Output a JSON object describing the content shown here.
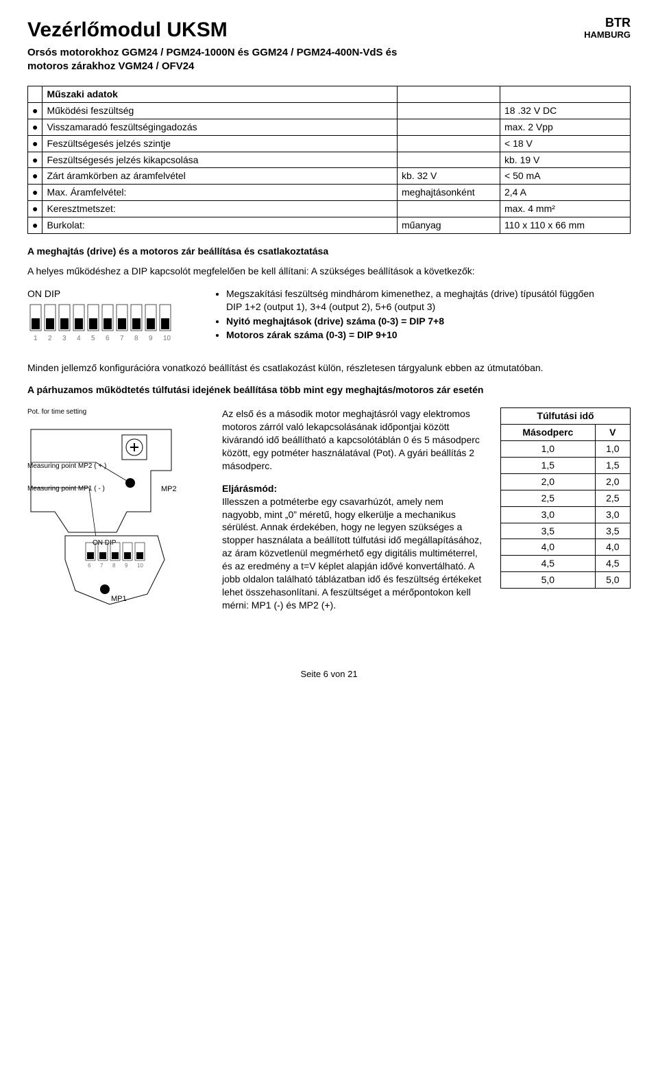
{
  "header": {
    "title": "Vezérlőmodul UKSM",
    "subtitle1": "Orsós motorokhoz GGM24 / PGM24-1000N és GGM24 / PGM24-400N-VdS és",
    "subtitle2": "motoros zárakhoz VGM24 / OFV24",
    "brand_top": "BTR",
    "brand_bottom": "HAMBURG"
  },
  "spec": {
    "rows": [
      {
        "label": "Műszaki adatok",
        "c2": "",
        "c3": ""
      },
      {
        "label": "Működési feszültség",
        "c2": "",
        "c3": "18 .32 V DC"
      },
      {
        "label": "Visszamaradó feszültségingadozás",
        "c2": "",
        "c3": "max. 2 Vpp"
      },
      {
        "label": "Feszültségesés jelzés szintje",
        "c2": "",
        "c3": "< 18 V"
      },
      {
        "label": "Feszültségesés jelzés kikapcsolása",
        "c2": "",
        "c3": "kb. 19 V"
      },
      {
        "label": "Zárt áramkörben az áramfelvétel",
        "c2": "kb. 32 V",
        "c3": "< 50 mA"
      },
      {
        "label": "Max. Áramfelvétel:",
        "c2": "meghajtásonként",
        "c3": "2,4 A"
      },
      {
        "label": "Keresztmetszet:",
        "c2": "",
        "c3": "max. 4 mm²"
      },
      {
        "label": "Burkolat:",
        "c2": "műanyag",
        "c3": "110 x 110 x 66 mm"
      }
    ]
  },
  "section1": {
    "heading": "A meghajtás (drive) és a motoros zár beállítása és csatlakoztatása",
    "intro": "A helyes működéshez a DIP kapcsolót megfelelően be kell állítani: A szükséges beállítások a következők:",
    "dip_label": "ON DIP",
    "bullets": [
      {
        "text1": "Megszakítási feszültség mindhárom kimenethez, a meghajtás (drive) típusától függően",
        "text2": "DIP 1+2 (output 1), 3+4 (output 2), 5+6 (output 3)"
      },
      {
        "text1": "Nyitó meghajtások (drive) száma (0-3) = DIP 7+8",
        "bold": true
      },
      {
        "text1": "Motoros zárak száma (0-3) = DIP 9+10",
        "bold": true
      }
    ],
    "closing": "Minden jellemző konfigurációra vonatkozó beállítást és csatlakozást külön, részletesen tárgyalunk ebben az útmutatóban."
  },
  "section2": {
    "heading": "A párhuzamos működtetés túlfutási idejének beállítása több mint egy meghajtás/motoros zár esetén",
    "diagram_labels": {
      "pot": "Pot. for time setting",
      "mp2": "Measuring point MP2 ( + )",
      "mp1": "Measuring point MP1 ( - )",
      "mp2_tag": "MP2",
      "mp1_tag": "MP1",
      "on_dip": "ON DIP"
    },
    "mid_para1": "Az első és a második motor meghajtásról vagy elektromos motoros zárról való lekapcsolásának időpontjai között kivárandó idő beállítható a kapcsolótáblán 0 és 5 másodperc között, egy potméter használatával (Pot). A gyári beállítás 2 másodperc.",
    "mid_heading": "Eljárásmód:",
    "mid_para2": "Illesszen a potméterbe egy csavarhúzót, amely nem nagyobb, mint „0” méretű, hogy elkerülje a mechanikus sérülést. Annak érdekében, hogy ne legyen szükséges a stopper használata a beállított túlfutási idő megállapításához, az áram közvetlenül megmérhető egy digitális multiméterrel, és az eredmény a t=V képlet alapján idővé konvertálható. A jobb oldalon található táblázatban idő és feszültség értékeket lehet összehasonlítani. A feszültséget a mérőpontokon kell mérni: MP1 (-) és MP2 (+).",
    "table": {
      "header_top": "Túlfutási idő",
      "col1": "Másodperc",
      "col2": "V",
      "rows": [
        [
          "1,0",
          "1,0"
        ],
        [
          "1,5",
          "1,5"
        ],
        [
          "2,0",
          "2,0"
        ],
        [
          "2,5",
          "2,5"
        ],
        [
          "3,0",
          "3,0"
        ],
        [
          "3,5",
          "3,5"
        ],
        [
          "4,0",
          "4,0"
        ],
        [
          "4,5",
          "4,5"
        ],
        [
          "5,0",
          "5,0"
        ]
      ]
    }
  },
  "footer": "Seite 6 von 21",
  "style": {
    "colors": {
      "text": "#000000",
      "bg": "#ffffff",
      "border": "#000000"
    }
  }
}
